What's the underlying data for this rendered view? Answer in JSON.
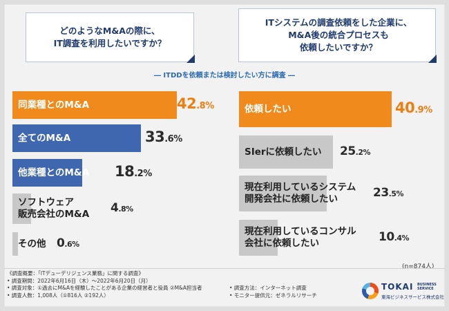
{
  "questions": {
    "left": [
      "どのようなM&Aの際に、",
      "IT調査を利用したいですか？"
    ],
    "right": [
      "ITシステムの調査依頼をした企業に、",
      "M&A後の統合プロセスも",
      "依頼したいですか？"
    ]
  },
  "subtitle": "ITDDを依頼または検討したい方に調査",
  "chart_data": [
    {
      "type": "bar",
      "orientation": "horizontal",
      "title": "どのようなM&Aの際に、IT調査を利用したいですか？",
      "categories": [
        "同業種とのM&A",
        "全てのM&A",
        "他業種とのM&A",
        "ソフトウェア販売会社のM&A",
        "その他"
      ],
      "values": [
        42.8,
        33.6,
        18.2,
        4.8,
        0.6
      ],
      "value_labels": [
        [
          "42",
          ".8%"
        ],
        [
          "33",
          ".6%"
        ],
        [
          "18",
          ".2%"
        ],
        [
          "4",
          ".8%"
        ],
        [
          "0",
          ".6%"
        ]
      ],
      "unit": "%",
      "colors": [
        "#f08a1c",
        "#3f67b0",
        "#3f67b0",
        "#c8c8c8",
        "#c8c8c8"
      ]
    },
    {
      "type": "bar",
      "orientation": "horizontal",
      "title": "ITシステムの調査依頼をした企業に、M&A後の統合プロセスも依頼したいですか？",
      "categories": [
        "依頼したい",
        "SIerに依頼したい",
        "現在利用しているシステム開発会社に依頼したい",
        "現在利用しているコンサル会社に依頼したい"
      ],
      "values": [
        40.9,
        25.2,
        23.5,
        10.4
      ],
      "value_labels": [
        [
          "40",
          ".9%"
        ],
        [
          "25",
          ".2%"
        ],
        [
          "23",
          ".5%"
        ],
        [
          "10",
          ".4%"
        ]
      ],
      "unit": "%",
      "colors": [
        "#f08a1c",
        "#c8c8c8",
        "#c8c8c8",
        "#c8c8c8"
      ]
    }
  ],
  "left_labels": [
    [
      "同業種とのM&A"
    ],
    [
      "全てのM&A"
    ],
    [
      "他業種とのM&A"
    ],
    [
      "ソフトウェア",
      "販売会社のM&A"
    ],
    [
      "その他"
    ]
  ],
  "right_labels": [
    [
      "依頼したい"
    ],
    [
      "SIerに依頼したい"
    ],
    [
      "現在利用しているシステム",
      "開発会社に依頼したい"
    ],
    [
      "現在利用しているコンサル",
      "会社に依頼したい"
    ]
  ],
  "sample_size": "(n=874人)",
  "notes": {
    "left": [
      "《調査概要：「ITデューデリジェンス業務」に関する調査》",
      "• 調査期間：2022年6月16日（木）～2022年6月20日（月）",
      "• 調査対象：①過去にM&Aを経験したことがある企業の経営者と役員 ②M&A担当者",
      "• 調査人数：1,008人（①816人 ②192人）"
    ],
    "right": [
      "• 調査方法：インターネット調査",
      "• モニター提供元：ゼネラルリサーチ"
    ]
  },
  "logo": {
    "name": "TOKAI",
    "sub": [
      "BUSINESS",
      "SERVICE"
    ],
    "jp": "東海ビジネスサービス株式会社"
  }
}
